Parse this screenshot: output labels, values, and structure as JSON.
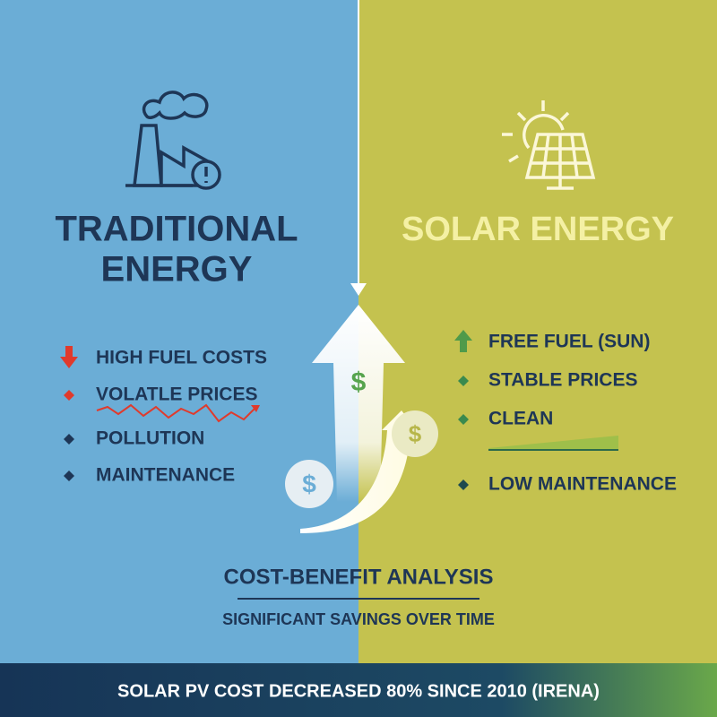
{
  "left": {
    "title_lines": [
      "TRADITIONAL",
      "ENERGY"
    ],
    "items": [
      "HIGH FUEL COSTS",
      "VOLATLE PRICES",
      "POLLUTION",
      "MAINTENANCE"
    ]
  },
  "right": {
    "title": "SOLAR ENERGY",
    "items": [
      "FREE FUEL (SUN)",
      "STABLE PRICES",
      "CLEAN",
      "LOW MAINTENANCE"
    ]
  },
  "center": {
    "coins": [
      "$",
      "$",
      "$"
    ],
    "title": "COST-BENEFIT ANALYSIS",
    "subtitle": "SIGNIFICANT SAVINGS OVER TIME"
  },
  "footer": {
    "text": "SOLAR PV COST DECREASED 80% SINCE 2010 (IRENA)"
  }
}
